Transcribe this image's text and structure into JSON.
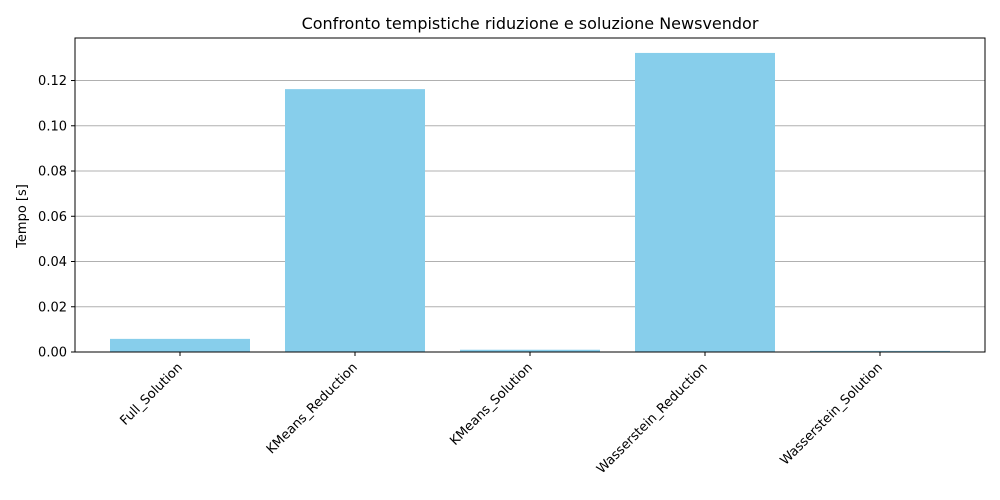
{
  "chart_data": {
    "type": "bar",
    "title": "Confronto tempistiche riduzione e soluzione Newsvendor",
    "xlabel": "",
    "ylabel": "Tempo [s]",
    "categories": [
      "Full_Solution",
      "KMeans_Reduction",
      "KMeans_Solution",
      "Wasserstein_Reduction",
      "Wasserstein_Solution"
    ],
    "values": [
      0.0058,
      0.1162,
      0.001,
      0.1322,
      0.0005
    ],
    "ylim": [
      0,
      0.1388
    ],
    "yticks": [
      0.0,
      0.02,
      0.04,
      0.06,
      0.08,
      0.1,
      0.12
    ],
    "ytick_labels": [
      "0.00",
      "0.02",
      "0.04",
      "0.06",
      "0.08",
      "0.10",
      "0.12"
    ],
    "grid": "y",
    "bar_color": "#87CEEB",
    "grid_color": "#b0b0b0"
  }
}
